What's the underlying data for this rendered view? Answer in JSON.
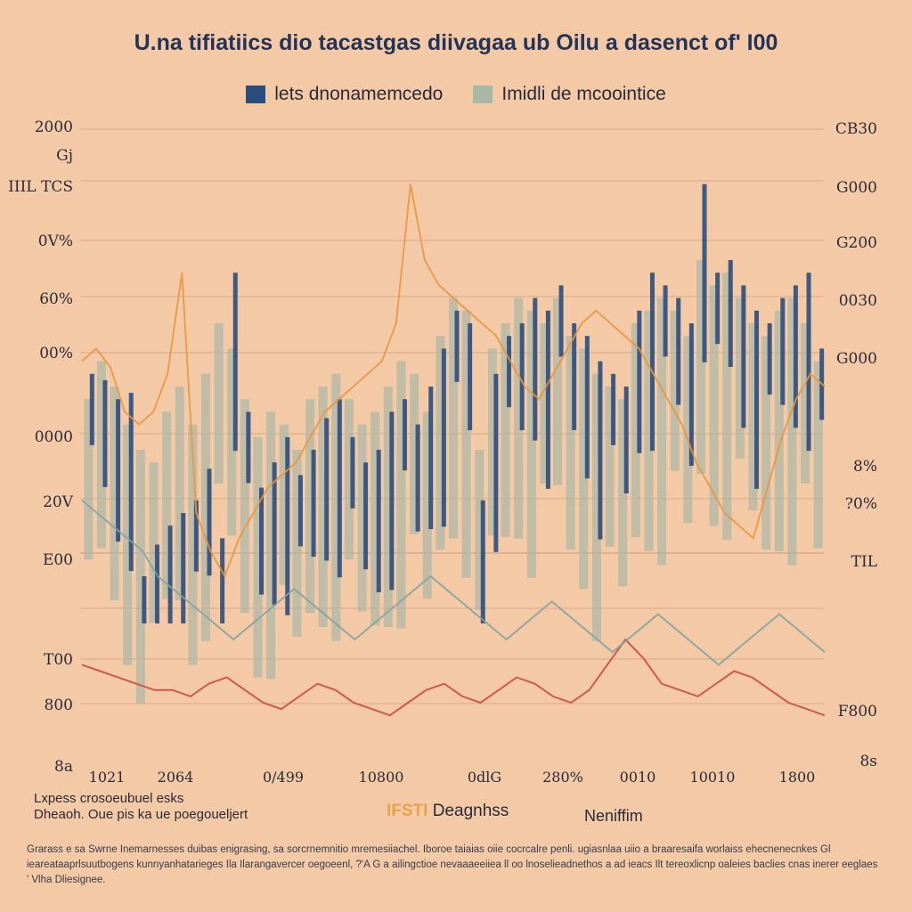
{
  "title": "U.na tifiatiics dio tacastgas diivagaa ub Oilu a dasenct of' I00",
  "legend": {
    "dark_label": "lets dnonamemcedo",
    "light_label": "Imidli de mcoointice"
  },
  "colors": {
    "background": "#f3c9a6",
    "dark_series": "#2b4d7e",
    "light_series": "#a9b7a6",
    "orange_line": "#e8953f",
    "red_line": "#c8463d",
    "grid": "#d8a888"
  },
  "footer": {
    "line1": "Lxpess crosoeubuel esks",
    "line2": "Dheaoh. Oue pis ka ue poegoueljert",
    "xlabel_accent": "IFSTI",
    "xlabel_mid": "Deagnhss",
    "xlabel_right": "Neniffim",
    "caption": "Grarass e sa Swrne Inemarnesses duibas enigrasing, sa sorcrnemnitio mremesiiachel. Iboroe taiaias oiie cocrcalre penli. ugiasnlaa uiio a braaresaifa worlaiss ehecnenecnkes Gl ieareataaprlsuutbogens kunnyanhatarieges Ila Ilarangavercer oegoeenl, ?'A G a ailingctioe nevaaaeeiiea ll oo lnoselieadnethos a ad ieacs Ilt tereoxlicnp oaleies baclies cnas inerer eeglaes ' Vlha Dliesignee."
  },
  "chart_data": {
    "type": "bar",
    "title": "U.na tifiatiics dio tacastgas diivagaa ub Oilu a dasenct of' I00",
    "left_axis_ticks": [
      "2000",
      "Gj",
      "IIIL TCS",
      "0V%",
      "60%",
      "00%",
      "0000",
      "20V",
      "E00",
      "T00",
      "800",
      "8a"
    ],
    "right_axis_ticks": [
      "CB30",
      "G000",
      "G200",
      "0030",
      "G000",
      "8%",
      "?0%",
      "TIL",
      "F800",
      "8s"
    ],
    "x_ticks": [
      "1021",
      "2064",
      "0/499",
      "10800",
      "0dlG",
      "280%",
      "0010",
      "10010",
      "1800"
    ],
    "ylim": [
      0,
      100
    ],
    "legend_position": "top",
    "grid": true,
    "series": [
      {
        "name": "lets dnonamemcedo",
        "values": [
          62,
          61,
          58,
          59,
          30,
          35,
          38,
          40,
          42,
          47,
          36,
          78,
          56,
          44,
          48,
          52,
          46,
          50,
          55,
          58,
          52,
          48,
          50,
          56,
          58,
          54,
          60,
          66,
          72,
          70,
          42,
          62,
          68,
          70,
          74,
          72,
          76,
          70,
          68,
          64,
          62,
          60,
          72,
          78,
          76,
          74,
          70,
          92,
          78,
          80,
          76,
          72,
          70,
          74,
          76,
          78,
          66
        ]
      },
      {
        "name": "Imidli de mcoointice",
        "values": [
          58,
          64,
          60,
          54,
          50,
          48,
          56,
          60,
          54,
          62,
          70,
          66,
          58,
          52,
          56,
          54,
          50,
          58,
          60,
          62,
          58,
          54,
          56,
          60,
          64,
          62,
          56,
          68,
          74,
          72,
          50,
          66,
          70,
          74,
          72,
          70,
          74,
          68,
          66,
          62,
          60,
          58,
          70,
          72,
          74,
          72,
          68,
          80,
          76,
          78,
          74,
          70,
          68,
          72,
          74,
          70,
          64
        ]
      },
      {
        "name": "orange",
        "type": "line",
        "values": [
          64,
          66,
          63,
          56,
          54,
          56,
          62,
          78,
          40,
          34,
          30,
          36,
          40,
          44,
          46,
          48,
          52,
          56,
          58,
          60,
          62,
          64,
          70,
          92,
          80,
          76,
          74,
          72,
          70,
          68,
          64,
          60,
          58,
          62,
          66,
          70,
          72,
          70,
          68,
          66,
          62,
          58,
          54,
          48,
          44,
          40,
          38,
          36,
          44,
          52,
          58,
          62,
          60
        ]
      },
      {
        "name": "red",
        "type": "line",
        "values": [
          16,
          15,
          14,
          13,
          12,
          12,
          11,
          13,
          14,
          12,
          10,
          9,
          11,
          13,
          12,
          10,
          9,
          8,
          10,
          12,
          13,
          11,
          10,
          12,
          14,
          13,
          11,
          10,
          12,
          16,
          20,
          17,
          13,
          12,
          11,
          13,
          15,
          14,
          12,
          10,
          9,
          8
        ]
      },
      {
        "name": "teal",
        "type": "line",
        "values": [
          42,
          40,
          38,
          36,
          34,
          30,
          28,
          26,
          24,
          22,
          20,
          22,
          24,
          26,
          28,
          26,
          24,
          22,
          20,
          22,
          24,
          26,
          28,
          30,
          28,
          26,
          24,
          22,
          20,
          22,
          24,
          26,
          24,
          22,
          20,
          18,
          20,
          22,
          24,
          22,
          20,
          18,
          16,
          18,
          20,
          22,
          24,
          22,
          20,
          18
        ]
      }
    ]
  }
}
